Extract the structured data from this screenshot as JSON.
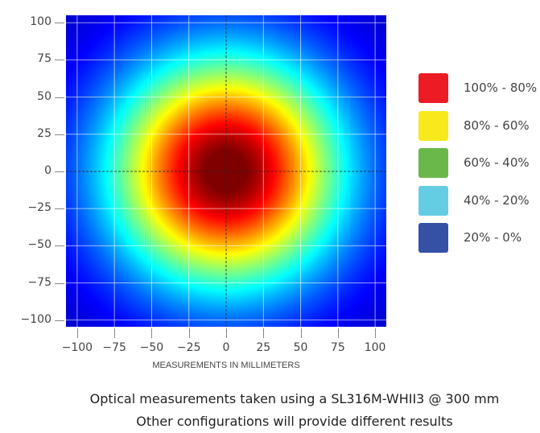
{
  "chart_data": {
    "type": "heatmap",
    "title": "",
    "xlabel": "MEASUREMENTS IN MILLIMETERS",
    "ylabel": "",
    "xlim": [
      -107.5,
      107.5
    ],
    "ylim": [
      -104.5,
      105
    ],
    "x_ticks": [
      "−100",
      "−75",
      "−50",
      "−25",
      "0",
      "25",
      "50",
      "75",
      "100"
    ],
    "y_ticks": [
      "100",
      "75",
      "50",
      "25",
      "0",
      "−25",
      "−50",
      "−75",
      "−100"
    ],
    "x_tick_values": [
      -100,
      -75,
      -50,
      -25,
      0,
      25,
      50,
      75,
      100
    ],
    "y_tick_values": [
      100,
      75,
      50,
      25,
      0,
      -25,
      -50,
      -75,
      -100
    ],
    "grid": true,
    "colormap": "jet",
    "distribution": "radial, peak at (0, 0), ~80% contour at r≈52 mm, ~40% at r≈75 mm",
    "legend_position": "right",
    "legend": [
      {
        "label": "100% - 80%",
        "color": "#ed1c24"
      },
      {
        "label": "80% - 60%",
        "color": "#f7e91b"
      },
      {
        "label": "60% - 40%",
        "color": "#6ab84a"
      },
      {
        "label": "40% - 20%",
        "color": "#64cde3"
      },
      {
        "label": "20% - 0%",
        "color": "#3451a5"
      }
    ]
  },
  "caption": {
    "line1": "Optical measurements taken using a SL316M-WHII3 @ 300 mm",
    "line2": "Other configurations will provide different results"
  }
}
